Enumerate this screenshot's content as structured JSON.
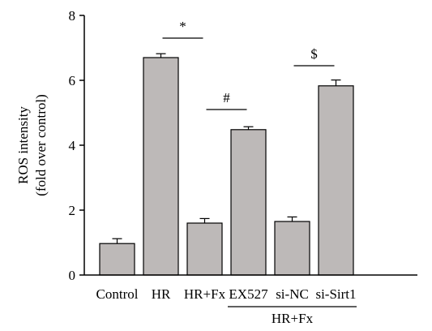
{
  "chart_data": {
    "type": "bar",
    "categories": [
      "Control",
      "HR",
      "HR+Fx",
      "EX527",
      "si-NC",
      "si-Sirt1"
    ],
    "values": [
      0.97,
      6.7,
      1.6,
      4.48,
      1.65,
      5.83
    ],
    "errors": [
      0.15,
      0.12,
      0.14,
      0.09,
      0.14,
      0.18
    ],
    "ylabel_line1": "ROS intensity",
    "ylabel_line2": "(fold over control)",
    "ylim": [
      0,
      8
    ],
    "yticks": [
      0,
      2,
      4,
      6,
      8
    ],
    "group_label": "HR+Fx",
    "group_categories": [
      "EX527",
      "si-NC",
      "si-Sirt1"
    ],
    "annotations": [
      {
        "symbol": "*",
        "from": "HR",
        "to": "HR+Fx",
        "y": 7.3
      },
      {
        "symbol": "#",
        "from": "HR+Fx",
        "to": "EX527",
        "y": 5.1
      },
      {
        "symbol": "$",
        "from": "si-NC",
        "to": "si-Sirt1",
        "y": 6.45
      }
    ],
    "bar_color": "#bdb9b8",
    "grid": false,
    "legend": "none"
  }
}
